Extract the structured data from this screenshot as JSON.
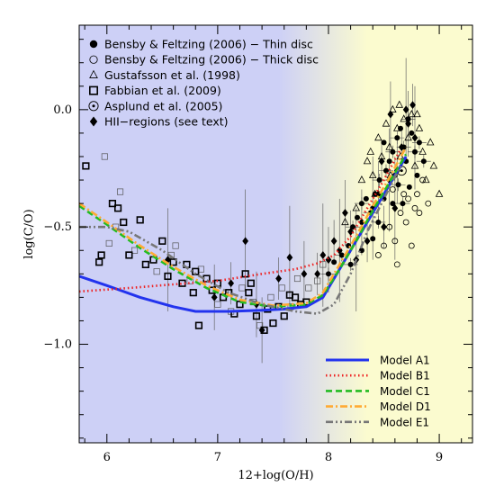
{
  "chart_data": {
    "type": "scatter",
    "xlabel": "12+log(O/H)",
    "ylabel": "log(C/O)",
    "xlim": [
      5.75,
      9.3
    ],
    "ylim": [
      -1.42,
      0.36
    ],
    "xticks": [
      6,
      7,
      8,
      9
    ],
    "yticks": [
      0.0,
      -0.5,
      -1.0
    ],
    "xtick_labels": [
      "6",
      "7",
      "8",
      "9"
    ],
    "ytick_labels": [
      "0.0",
      "−0.5",
      "−1.0"
    ],
    "background": {
      "left_color": "#cdd0f6",
      "right_color": "#fbfbcf",
      "transition_start": 7.55,
      "transition_end": 8.35
    },
    "legend_markers": [
      {
        "label": "Bensby & Feltzing (2006) − Thin disc",
        "marker": "filled-circle"
      },
      {
        "label": "Bensby & Feltzing (2006) − Thick disc",
        "marker": "open-circle"
      },
      {
        "label": "Gustafsson et al. (1998)",
        "marker": "open-triangle"
      },
      {
        "label": "Fabbian et al. (2009)",
        "marker": "open-square"
      },
      {
        "label": "Asplund et al. (2005)",
        "marker": "dotted-circle"
      },
      {
        "label": "HII−regions (see text)",
        "marker": "filled-diamond"
      }
    ],
    "series": [
      {
        "name": "Model A1",
        "color": "#2233ee",
        "dash": "solid",
        "x": [
          5.75,
          6.0,
          6.3,
          6.6,
          6.8,
          7.1,
          7.4,
          7.6,
          7.8,
          7.95,
          8.1,
          8.25,
          8.4,
          8.55,
          8.7
        ],
        "y": [
          -0.71,
          -0.75,
          -0.8,
          -0.84,
          -0.86,
          -0.86,
          -0.855,
          -0.85,
          -0.84,
          -0.8,
          -0.68,
          -0.56,
          -0.44,
          -0.32,
          -0.2
        ]
      },
      {
        "name": "Model B1",
        "color": "#ee2222",
        "dash": "dotted",
        "x": [
          5.75,
          6.2,
          6.6,
          7.0,
          7.4,
          7.7,
          7.9,
          8.05,
          8.2,
          8.35,
          8.5,
          8.65
        ],
        "y": [
          -0.775,
          -0.76,
          -0.745,
          -0.73,
          -0.7,
          -0.68,
          -0.655,
          -0.62,
          -0.54,
          -0.42,
          -0.3,
          -0.17
        ]
      },
      {
        "name": "Model C1",
        "color": "#22bb22",
        "dash": "dashed",
        "x": [
          5.75,
          6.0,
          6.3,
          6.6,
          6.9,
          7.2,
          7.5,
          7.8,
          7.95,
          8.1,
          8.25,
          8.4,
          8.55,
          8.7
        ],
        "y": [
          -0.41,
          -0.49,
          -0.59,
          -0.68,
          -0.76,
          -0.82,
          -0.84,
          -0.83,
          -0.79,
          -0.68,
          -0.56,
          -0.43,
          -0.31,
          -0.19
        ]
      },
      {
        "name": "Model D1",
        "color": "#ffaa33",
        "dash": "dashdot",
        "x": [
          5.75,
          6.0,
          6.3,
          6.6,
          6.9,
          7.2,
          7.5,
          7.8,
          7.95,
          8.1,
          8.25,
          8.4,
          8.55,
          8.7
        ],
        "y": [
          -0.4,
          -0.48,
          -0.58,
          -0.67,
          -0.75,
          -0.81,
          -0.835,
          -0.825,
          -0.78,
          -0.66,
          -0.54,
          -0.41,
          -0.29,
          -0.16
        ]
      },
      {
        "name": "Model E1",
        "color": "#777777",
        "dash": "dashdotdot",
        "x": [
          5.75,
          6.0,
          6.2,
          6.5,
          6.8,
          7.1,
          7.4,
          7.7,
          7.9,
          8.05,
          8.2,
          8.35,
          8.5,
          8.65
        ],
        "y": [
          -0.5,
          -0.5,
          -0.52,
          -0.6,
          -0.7,
          -0.78,
          -0.83,
          -0.86,
          -0.87,
          -0.83,
          -0.7,
          -0.52,
          -0.38,
          -0.24
        ]
      }
    ],
    "points": {
      "fabbian": [
        [
          5.81,
          -0.24
        ],
        [
          5.93,
          -0.65
        ],
        [
          5.95,
          -0.62
        ],
        [
          6.05,
          -0.4
        ],
        [
          6.1,
          -0.42
        ],
        [
          6.15,
          -0.48
        ],
        [
          6.2,
          -0.62
        ],
        [
          6.3,
          -0.47
        ],
        [
          6.35,
          -0.66
        ],
        [
          6.42,
          -0.64
        ],
        [
          6.5,
          -0.56
        ],
        [
          6.55,
          -0.71
        ],
        [
          6.6,
          -0.65
        ],
        [
          6.68,
          -0.74
        ],
        [
          6.72,
          -0.66
        ],
        [
          6.78,
          -0.78
        ],
        [
          6.8,
          -0.69
        ],
        [
          6.83,
          -0.92
        ],
        [
          6.9,
          -0.72
        ],
        [
          6.95,
          -0.77
        ],
        [
          7.0,
          -0.74
        ],
        [
          7.05,
          -0.8
        ],
        [
          7.1,
          -0.78
        ],
        [
          7.15,
          -0.87
        ],
        [
          7.2,
          -0.83
        ],
        [
          7.25,
          -0.7
        ],
        [
          7.28,
          -0.78
        ],
        [
          7.3,
          -0.74
        ],
        [
          7.35,
          -0.88
        ],
        [
          7.42,
          -0.94
        ],
        [
          7.45,
          -0.85
        ],
        [
          7.5,
          -0.91
        ],
        [
          7.55,
          -0.84
        ],
        [
          7.6,
          -0.88
        ],
        [
          7.65,
          -0.79
        ],
        [
          7.7,
          -0.8
        ],
        [
          7.75,
          -0.83
        ],
        [
          7.8,
          -0.82
        ]
      ],
      "fabbian_light": [
        [
          5.98,
          -0.2
        ],
        [
          6.02,
          -0.57
        ],
        [
          6.08,
          -0.5
        ],
        [
          6.12,
          -0.35
        ],
        [
          6.25,
          -0.6
        ],
        [
          6.45,
          -0.69
        ],
        [
          6.58,
          -0.62
        ],
        [
          6.62,
          -0.58
        ],
        [
          6.75,
          -0.73
        ],
        [
          6.85,
          -0.68
        ],
        [
          7.0,
          -0.83
        ],
        [
          7.12,
          -0.86
        ],
        [
          7.22,
          -0.76
        ],
        [
          7.32,
          -0.82
        ],
        [
          7.38,
          -0.92
        ],
        [
          7.48,
          -0.8
        ],
        [
          7.58,
          -0.76
        ],
        [
          7.66,
          -0.84
        ],
        [
          7.72,
          -0.72
        ],
        [
          7.82,
          -0.76
        ],
        [
          7.9,
          -0.73
        ],
        [
          7.95,
          -0.66
        ]
      ],
      "thin": [
        [
          8.0,
          -0.7
        ],
        [
          8.05,
          -0.65
        ],
        [
          8.12,
          -0.62
        ],
        [
          8.18,
          -0.58
        ],
        [
          8.22,
          -0.5
        ],
        [
          8.26,
          -0.46
        ],
        [
          8.3,
          -0.4
        ],
        [
          8.34,
          -0.38
        ],
        [
          8.38,
          -0.44
        ],
        [
          8.42,
          -0.36
        ],
        [
          8.46,
          -0.3
        ],
        [
          8.5,
          -0.38
        ],
        [
          8.52,
          -0.26
        ],
        [
          8.55,
          -0.22
        ],
        [
          8.58,
          -0.18
        ],
        [
          8.6,
          -0.28
        ],
        [
          8.62,
          -0.12
        ],
        [
          8.65,
          -0.08
        ],
        [
          8.68,
          -0.16
        ],
        [
          8.7,
          -0.22
        ],
        [
          8.72,
          -0.04
        ],
        [
          8.75,
          -0.1
        ],
        [
          8.78,
          -0.18
        ],
        [
          8.8,
          -0.28
        ],
        [
          8.82,
          -0.14
        ],
        [
          8.58,
          -0.4
        ],
        [
          8.45,
          -0.48
        ],
        [
          8.4,
          -0.55
        ],
        [
          8.63,
          -0.32
        ],
        [
          8.73,
          -0.33
        ],
        [
          8.86,
          -0.22
        ],
        [
          8.3,
          -0.6
        ],
        [
          8.2,
          -0.66
        ],
        [
          8.5,
          -0.14
        ],
        [
          8.67,
          -0.4
        ]
      ],
      "thick": [
        [
          8.45,
          -0.62
        ],
        [
          8.55,
          -0.5
        ],
        [
          8.6,
          -0.56
        ],
        [
          8.65,
          -0.44
        ],
        [
          8.7,
          -0.48
        ],
        [
          8.72,
          -0.38
        ],
        [
          8.75,
          -0.58
        ],
        [
          8.78,
          -0.42
        ],
        [
          8.8,
          -0.36
        ],
        [
          8.82,
          -0.44
        ],
        [
          8.85,
          -0.3
        ],
        [
          8.9,
          -0.4
        ],
        [
          8.62,
          -0.66
        ],
        [
          8.68,
          -0.36
        ],
        [
          8.58,
          -0.34
        ],
        [
          8.5,
          -0.58
        ]
      ],
      "gustafsson": [
        [
          8.15,
          -0.48
        ],
        [
          8.25,
          -0.42
        ],
        [
          8.3,
          -0.3
        ],
        [
          8.35,
          -0.22
        ],
        [
          8.4,
          -0.28
        ],
        [
          8.45,
          -0.12
        ],
        [
          8.48,
          -0.2
        ],
        [
          8.52,
          -0.06
        ],
        [
          8.55,
          -0.16
        ],
        [
          8.58,
          0.0
        ],
        [
          8.62,
          -0.08
        ],
        [
          8.65,
          -0.2
        ],
        [
          8.68,
          -0.04
        ],
        [
          8.72,
          -0.12
        ],
        [
          8.75,
          -0.02
        ],
        [
          8.78,
          -0.24
        ],
        [
          8.82,
          -0.08
        ],
        [
          8.85,
          -0.18
        ],
        [
          8.88,
          -0.3
        ],
        [
          8.92,
          -0.14
        ],
        [
          8.95,
          -0.24
        ],
        [
          9.0,
          -0.36
        ],
        [
          8.42,
          -0.36
        ],
        [
          8.38,
          -0.18
        ],
        [
          8.56,
          -0.28
        ],
        [
          8.64,
          0.02
        ],
        [
          8.8,
          -0.02
        ]
      ],
      "hii": [
        [
          7.25,
          -0.56
        ],
        [
          7.4,
          -0.94
        ],
        [
          7.55,
          -0.72
        ],
        [
          7.65,
          -0.63
        ],
        [
          7.78,
          -0.7
        ],
        [
          7.9,
          -0.7
        ],
        [
          7.95,
          -0.62
        ],
        [
          8.0,
          -0.64
        ],
        [
          8.05,
          -0.56
        ],
        [
          8.1,
          -0.6
        ],
        [
          8.15,
          -0.44
        ],
        [
          8.2,
          -0.52
        ],
        [
          8.25,
          -0.64
        ],
        [
          8.3,
          -0.48
        ],
        [
          8.35,
          -0.56
        ],
        [
          8.4,
          -0.42
        ],
        [
          8.45,
          -0.36
        ],
        [
          8.5,
          -0.5
        ],
        [
          8.55,
          -0.3
        ],
        [
          8.62,
          -0.26
        ],
        [
          8.66,
          -0.16
        ],
        [
          8.7,
          0.0
        ],
        [
          8.72,
          -0.06
        ],
        [
          8.76,
          0.02
        ],
        [
          8.78,
          -0.12
        ],
        [
          8.56,
          -0.02
        ],
        [
          8.48,
          -0.22
        ],
        [
          8.6,
          -0.42
        ],
        [
          6.97,
          -0.8
        ],
        [
          7.12,
          -0.74
        ],
        [
          6.55,
          -0.64
        ],
        [
          7.35,
          -0.83
        ]
      ],
      "asplund": [
        [
          8.66,
          -0.26
        ]
      ]
    }
  }
}
